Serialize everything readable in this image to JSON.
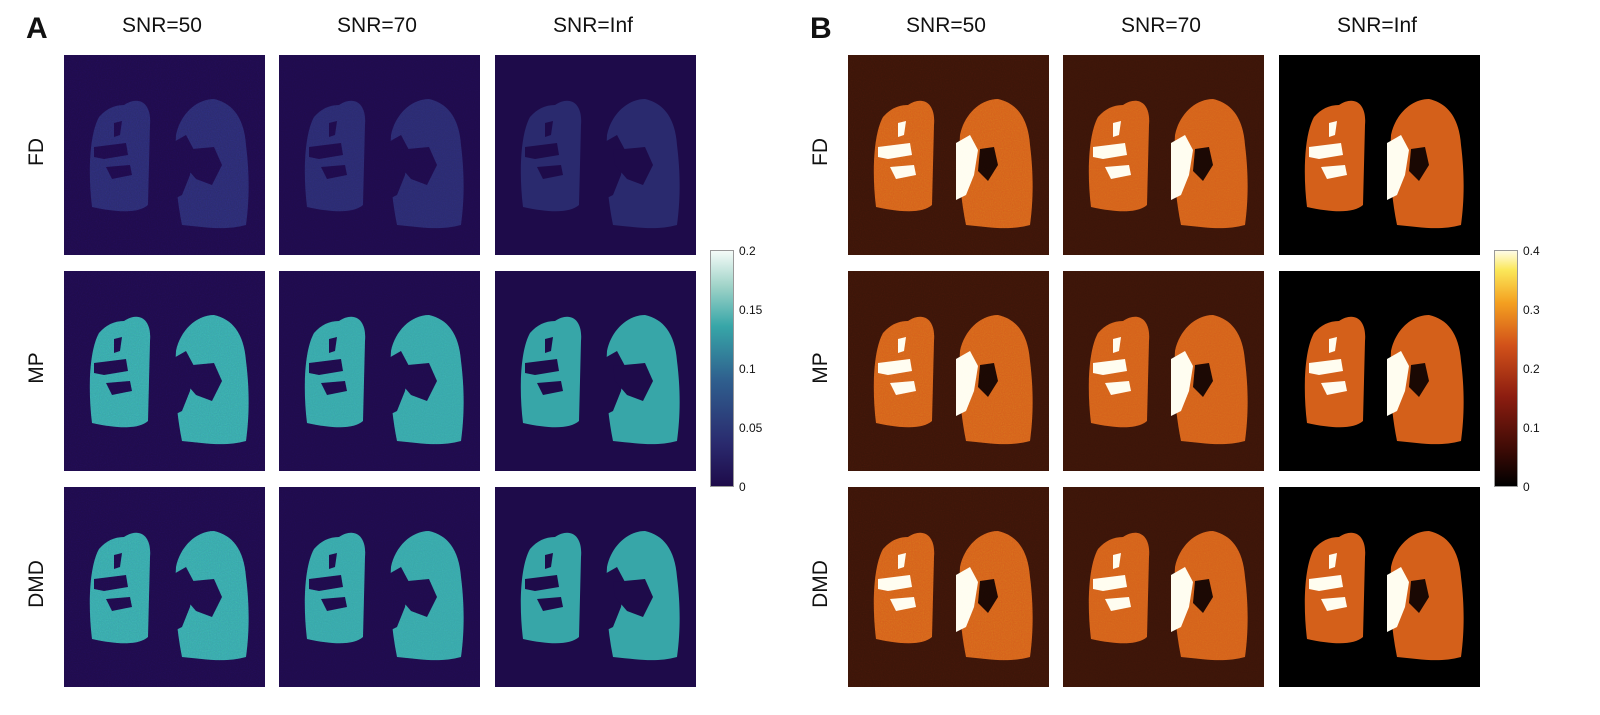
{
  "figure": {
    "panels": [
      {
        "letter": "A",
        "columns": [
          "SNR=50",
          "SNR=70",
          "SNR=Inf"
        ],
        "rows": [
          "FD",
          "MP",
          "DMD"
        ],
        "colormap": "teal",
        "colorbar": {
          "ticks": [
            "0.2",
            "0.15",
            "0.1",
            "0.05",
            "0"
          ]
        }
      },
      {
        "letter": "B",
        "columns": [
          "SNR=50",
          "SNR=70",
          "SNR=Inf"
        ],
        "rows": [
          "FD",
          "MP",
          "DMD"
        ],
        "colormap": "heat",
        "colorbar": {
          "ticks": [
            "0.4",
            "0.3",
            "0.2",
            "0.1",
            "0"
          ]
        }
      }
    ]
  },
  "colors": {
    "teal_background": "#1e0b4a",
    "teal_lung_low": "#2a2a6e",
    "teal_lung_high": "#37a6a8",
    "heat_background": "#000000",
    "heat_lung": "#d4601a",
    "heat_vessel": "#fffdf0"
  }
}
